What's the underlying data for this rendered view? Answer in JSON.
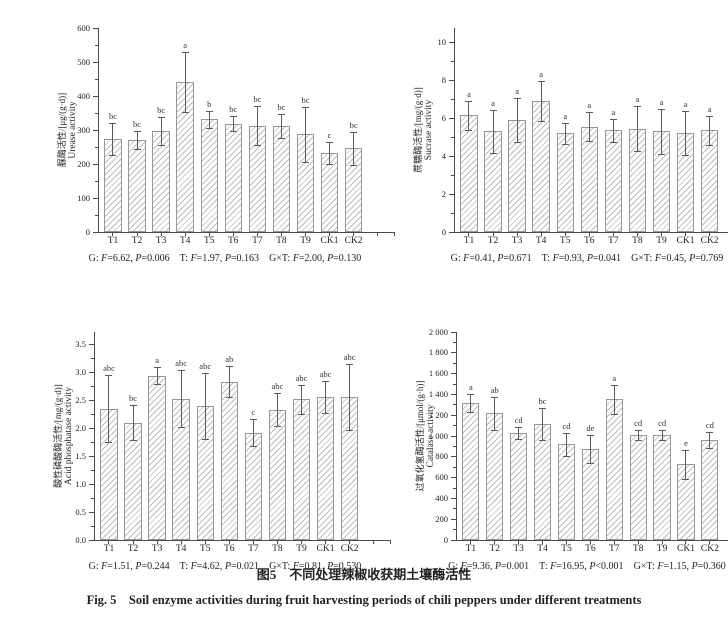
{
  "captions": {
    "cn": "图5　不同处理辣椒收获期土壤酶活性",
    "en": "Fig. 5　Soil enzyme activities during fruit harvesting periods of chili peppers under different treatments"
  },
  "chart_data": [
    {
      "id": "urease",
      "type": "bar",
      "ylabel_cn": "脲酶活性/[μg/(g·d)]",
      "ylabel_en": "Urease activity",
      "categories": [
        "T1",
        "T2",
        "T3",
        "T4",
        "T5",
        "T6",
        "T7",
        "T8",
        "T9",
        "CK1",
        "CK2"
      ],
      "values": [
        274,
        270,
        297,
        440,
        331,
        318,
        313,
        312,
        287,
        233,
        246
      ],
      "errors": [
        47,
        27,
        41,
        88,
        25,
        22,
        57,
        36,
        82,
        32,
        48
      ],
      "letters": [
        "bc",
        "bc",
        "bc",
        "a",
        "b",
        "bc",
        "bc",
        "bc",
        "bc",
        "c",
        "bc"
      ],
      "ylim": [
        0,
        600
      ],
      "y_scale_max": 600,
      "yticks": [
        {
          "v": 0,
          "label": "0"
        },
        {
          "v": 100,
          "label": "100"
        },
        {
          "v": 200,
          "label": "200"
        },
        {
          "v": 300,
          "label": "300"
        },
        {
          "v": 400,
          "label": "400"
        },
        {
          "v": 500,
          "label": "500"
        },
        {
          "v": 600,
          "label": "600"
        }
      ],
      "grid": false,
      "stats": [
        "G: F=6.62, P=0.006",
        "T: F=1.97, P=0.163",
        "G×T: F=2.00, P=0.130"
      ]
    },
    {
      "id": "sucrase",
      "type": "bar",
      "ylabel_cn": "蔗糖酶活性/[mg/(g·d)]",
      "ylabel_en": "Sucrase activity",
      "categories": [
        "T1",
        "T2",
        "T3",
        "T4",
        "T5",
        "T6",
        "T7",
        "T8",
        "T9",
        "CK1",
        "CK2"
      ],
      "values": [
        6.15,
        5.3,
        5.9,
        6.9,
        5.2,
        5.55,
        5.35,
        5.45,
        5.3,
        5.2,
        5.35
      ],
      "errors": [
        0.75,
        1.15,
        1.15,
        1.05,
        0.55,
        0.78,
        0.6,
        1.2,
        1.2,
        1.15,
        0.75
      ],
      "letters": [
        "a",
        "a",
        "a",
        "a",
        "a",
        "a",
        "a",
        "a",
        "a",
        "a",
        "a"
      ],
      "ylim": [
        0,
        10
      ],
      "y_scale_max": 10.75,
      "yticks": [
        {
          "v": 0,
          "label": "0"
        },
        {
          "v": 2,
          "label": "2"
        },
        {
          "v": 4,
          "label": "4"
        },
        {
          "v": 6,
          "label": "6"
        },
        {
          "v": 8,
          "label": "8"
        },
        {
          "v": 10,
          "label": "10"
        }
      ],
      "grid": false,
      "stats": [
        "G: F=0.41, P=0.671",
        "T: F=0.93, P=0.041",
        "G×T: F=0.45, P=0.769"
      ]
    },
    {
      "id": "acid-phosphatase",
      "type": "bar",
      "ylabel_cn": "酸性磷酸酶活性/[mg/(g·d)]",
      "ylabel_en": "Acid phosphatase activity",
      "categories": [
        "T1",
        "T2",
        "T3",
        "T4",
        "T5",
        "T6",
        "T7",
        "T8",
        "T9",
        "CK1",
        "CK2"
      ],
      "values": [
        2.35,
        2.1,
        2.94,
        2.53,
        2.39,
        2.83,
        1.92,
        2.33,
        2.52,
        2.56,
        2.56
      ],
      "errors": [
        0.6,
        0.31,
        0.15,
        0.51,
        0.59,
        0.28,
        0.24,
        0.3,
        0.26,
        0.29,
        0.59
      ],
      "letters": [
        "abc",
        "bc",
        "a",
        "abc",
        "abc",
        "ab",
        "c",
        "abc",
        "abc",
        "abc",
        "abc"
      ],
      "ylim": [
        0,
        3.5
      ],
      "y_scale_max": 3.72,
      "yticks": [
        {
          "v": 0,
          "label": "0.0"
        },
        {
          "v": 0.5,
          "label": "0.5"
        },
        {
          "v": 1.0,
          "label": "1.0"
        },
        {
          "v": 1.5,
          "label": "1.5"
        },
        {
          "v": 2.0,
          "label": "2.0"
        },
        {
          "v": 2.5,
          "label": "2.5"
        },
        {
          "v": 3.0,
          "label": "3.0"
        },
        {
          "v": 3.5,
          "label": "3.5"
        }
      ],
      "grid": false,
      "stats": [
        "G: F=1.51, P=0.244",
        "T: F=4.62, P=0.021",
        "G×T: F=0.81, P=0.530"
      ]
    },
    {
      "id": "catalase",
      "type": "bar",
      "ylabel_cn": "过氧化氢酶活性/[μmol/(g·h)]",
      "ylabel_en": "Catalase activity",
      "categories": [
        "T1",
        "T2",
        "T3",
        "T4",
        "T5",
        "T6",
        "T7",
        "T8",
        "T9",
        "CK1",
        "CK2"
      ],
      "values": [
        1315,
        1220,
        1028,
        1115,
        922,
        872,
        1352,
        1008,
        1008,
        730,
        960
      ],
      "errors": [
        85,
        158,
        58,
        150,
        110,
        135,
        143,
        45,
        50,
        140,
        80
      ],
      "letters": [
        "a",
        "ab",
        "cd",
        "bc",
        "cd",
        "de",
        "a",
        "cd",
        "cd",
        "e",
        "cd"
      ],
      "ylim": [
        0,
        2000
      ],
      "y_scale_max": 2000,
      "yticks": [
        {
          "v": 0,
          "label": "0"
        },
        {
          "v": 200,
          "label": "200"
        },
        {
          "v": 400,
          "label": "400"
        },
        {
          "v": 600,
          "label": "600"
        },
        {
          "v": 800,
          "label": "800"
        },
        {
          "v": 1000,
          "label": "1 000"
        },
        {
          "v": 1200,
          "label": "1 200"
        },
        {
          "v": 1400,
          "label": "1 400"
        },
        {
          "v": 1600,
          "label": "1 600"
        },
        {
          "v": 1800,
          "label": "1 800"
        },
        {
          "v": 2000,
          "label": "2 000"
        }
      ],
      "grid": false,
      "stats": [
        "G: F=9.36, P=0.001",
        "T: F=16.95, P<0.001",
        "G×T: F=1.15, P=0.360"
      ]
    }
  ]
}
